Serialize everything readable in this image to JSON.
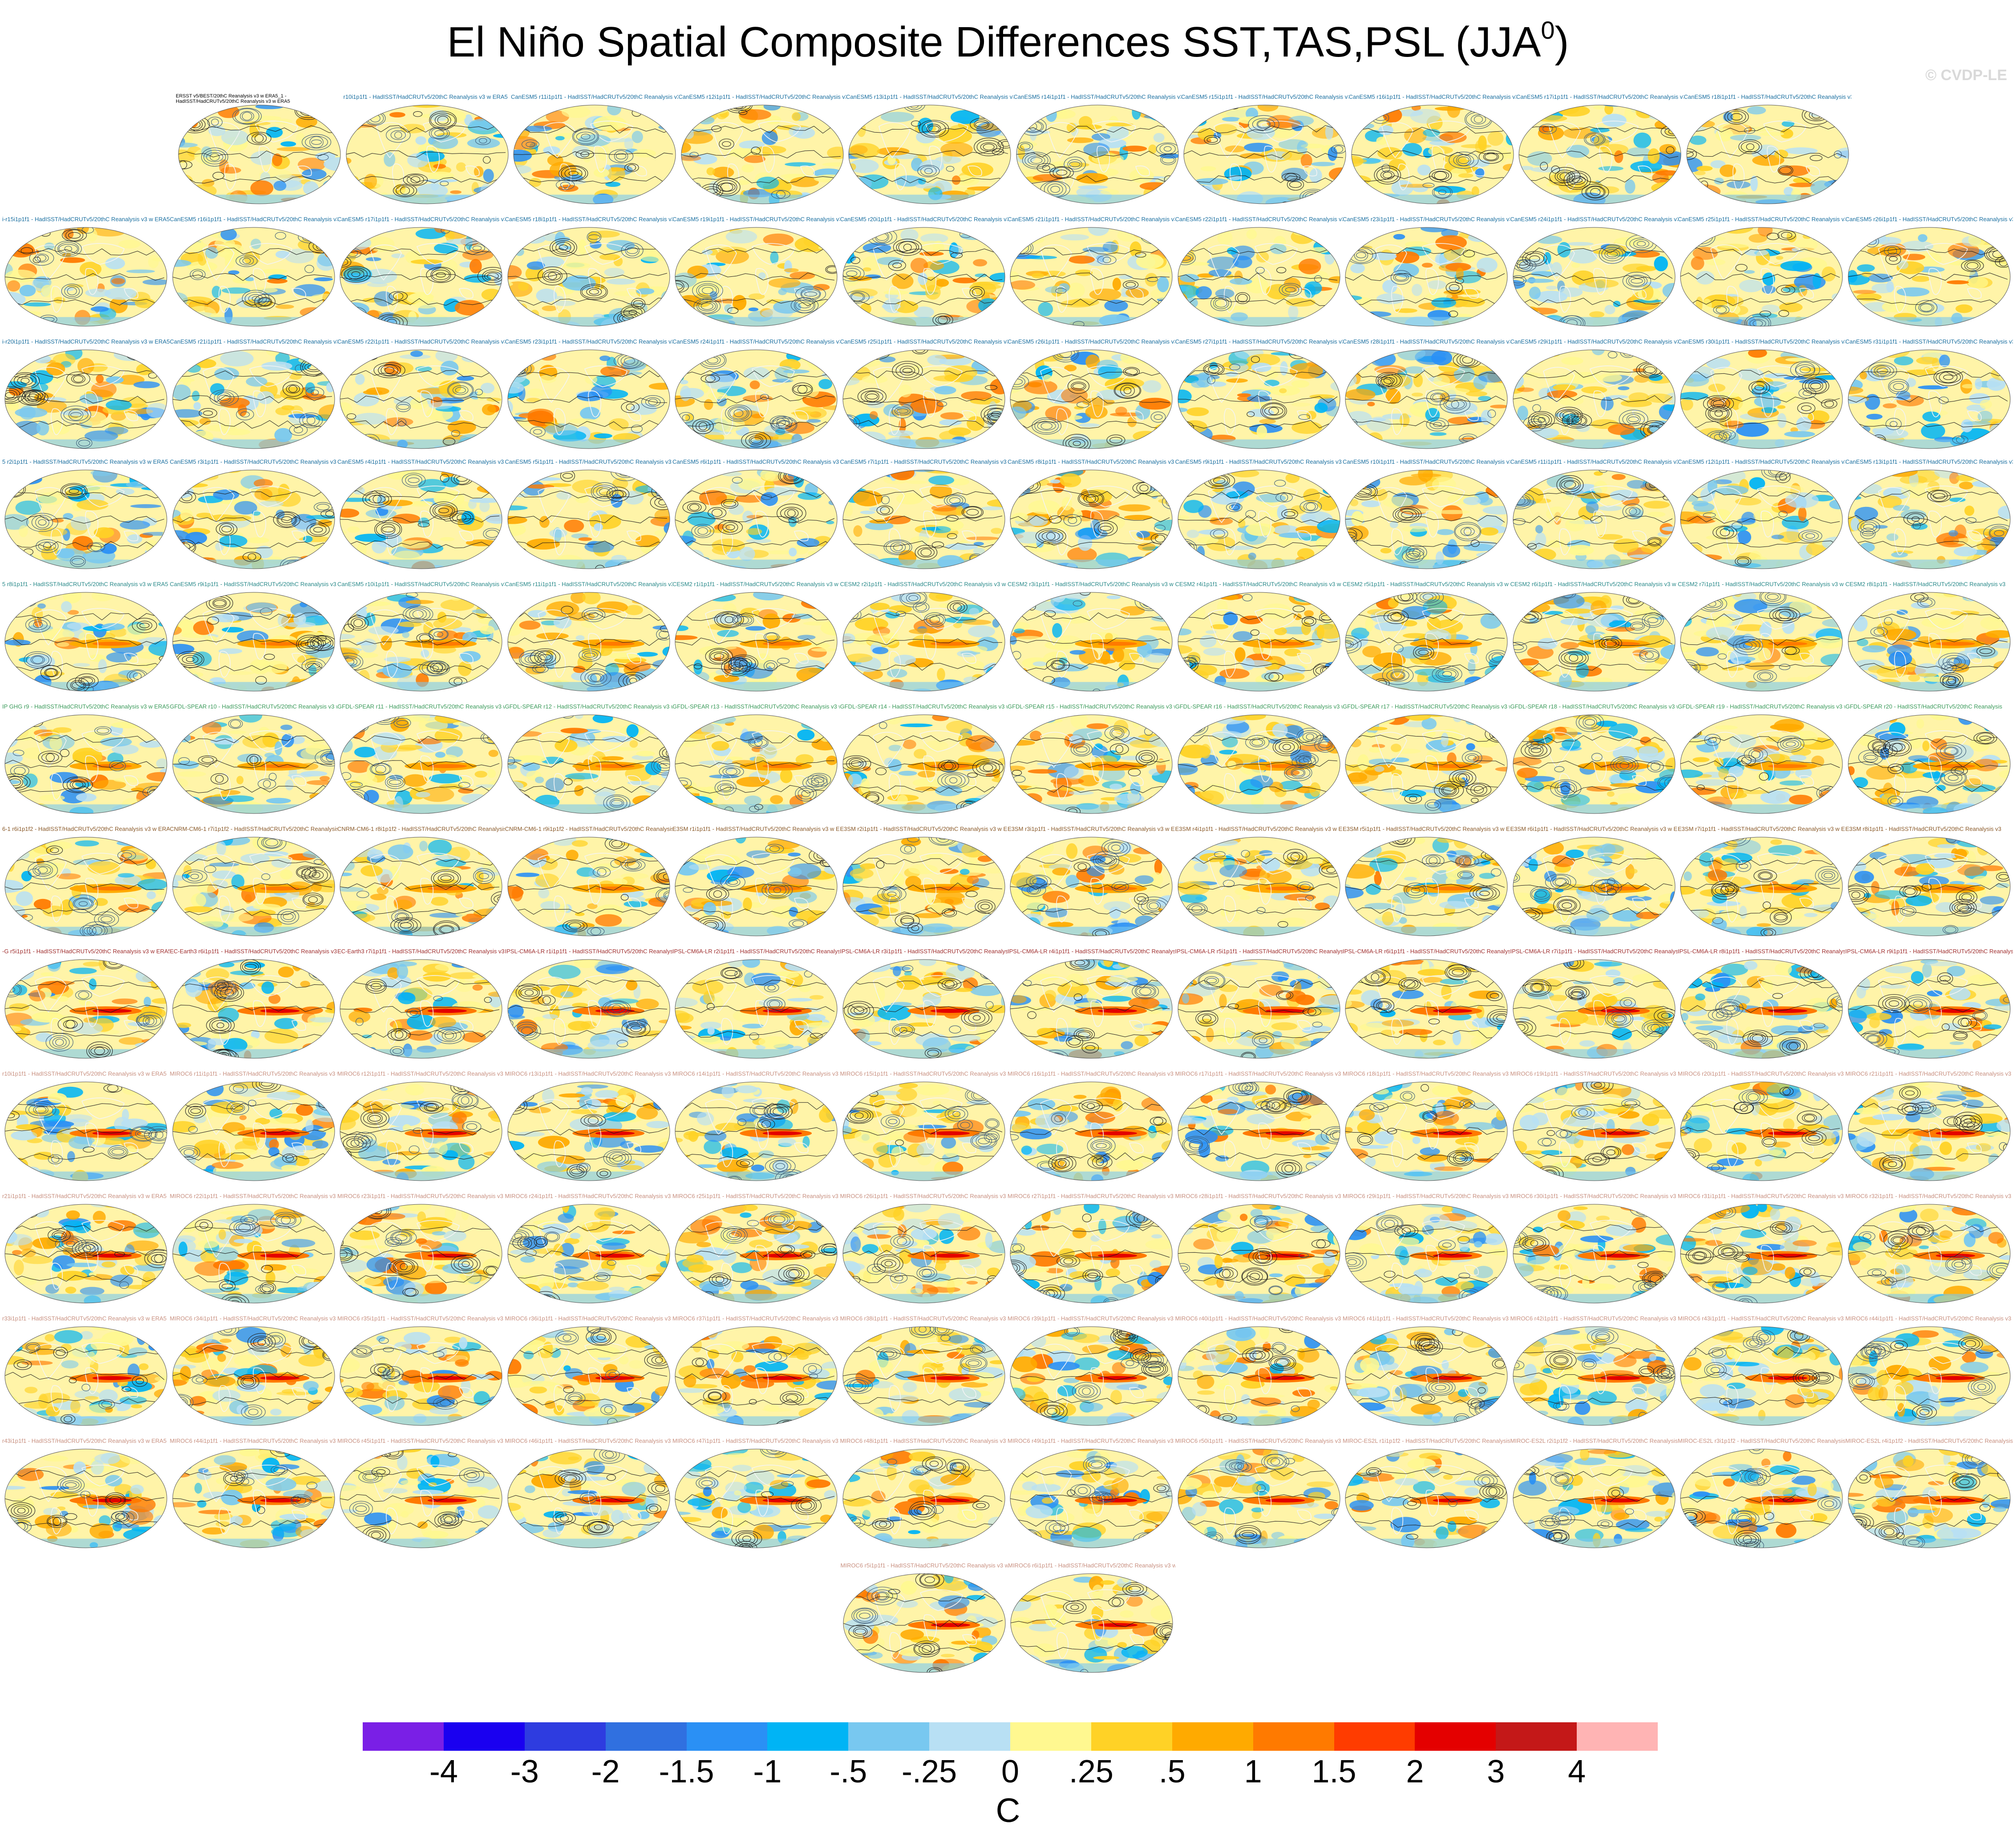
{
  "title": "El Niño Spatial Composite Differences SST,TAS,PSL (JJA",
  "title_sup": "0",
  "title_close": ")",
  "credit": "© CVDP-LE",
  "panel_rows": [
    {
      "panels": 10,
      "label_color": "#1a6fa0",
      "first_label": "ERSST v5/BEST/20thC Reanalysis v3 w ERA5_1 - HadISST/HadCRUTv5/20thC Reanalysis v3 w ERA5",
      "labels": [
        "r1i1p1f1 - HadISST/HadCRUTv5/20thC Reanalysis v3 w ERA5",
        "r10i1p1f1 - HadISST/HadCRUTv5/20thC Reanalysis v3 w ERA5",
        "CanESM5 r11i1p1f1 - HadISST/HadCRUTv5/20thC Reanalysis v3 w ERA5",
        "CanESM5 r12i1p1f1 - HadISST/HadCRUTv5/20thC Reanalysis v3 w ERA5",
        "CanESM5 r13i1p1f1 - HadISST/HadCRUTv5/20thC Reanalysis v3 w ERA5",
        "CanESM5 r14i1p1f1 - HadISST/HadCRUTv5/20thC Reanalysis v3 w ERA5",
        "CanESM5 r15i1p1f1 - HadISST/HadCRUTv5/20thC Reanalysis v3 w ERA5",
        "CanESM5 r16i1p1f1 - HadISST/HadCRUTv5/20thC Reanalysis v3 w ERA5",
        "CanESM5 r17i1p1f1 - HadISST/HadCRUTv5/20thC Reanalysis v3 w ERA5",
        "CanESM5 r18i1p1f1 - HadISST/HadCRUTv5/20thC Reanalysis v3"
      ]
    },
    {
      "panels": 12,
      "label_color": "#1a6fa0",
      "labels": [
        "i-r15i1p1f1 - HadISST/HadCRUTv5/20thC Reanalysis v3 w ERA5",
        "CanESM5 r16i1p1f1 - HadISST/HadCRUTv5/20thC Reanalysis v3 w ERA5",
        "CanESM5 r17i1p1f1 - HadISST/HadCRUTv5/20thC Reanalysis v3 w ERA5",
        "CanESM5 r18i1p1f1 - HadISST/HadCRUTv5/20thC Reanalysis v3 w ERA5",
        "CanESM5 r19i1p1f1 - HadISST/HadCRUTv5/20thC Reanalysis v3 w ERA5",
        "CanESM5 r20i1p1f1 - HadISST/HadCRUTv5/20thC Reanalysis v3 w ERA5",
        "CanESM5 r21i1p1f1 - HadISST/HadCRUTv5/20thC Reanalysis v3 w ERA5",
        "CanESM5 r22i1p1f1 - HadISST/HadCRUTv5/20thC Reanalysis v3 w ERA5",
        "CanESM5 r23i1p1f1 - HadISST/HadCRUTv5/20thC Reanalysis v3 w ERA5",
        "CanESM5 r24i1p1f1 - HadISST/HadCRUTv5/20thC Reanalysis v3 w ERA5",
        "CanESM5 r25i1p1f1 - HadISST/HadCRUTv5/20thC Reanalysis v3 w ERA5",
        "CanESM5 r26i1p1f1 - HadISST/HadCRUTv5/20thC Reanalysis v3"
      ]
    },
    {
      "panels": 12,
      "label_color": "#1a6fa0",
      "labels": [
        "i-r20i1p1f1 - HadISST/HadCRUTv5/20thC Reanalysis v3 w ERA5",
        "CanESM5 r21i1p1f1 - HadISST/HadCRUTv5/20thC Reanalysis v3 w ERA5",
        "CanESM5 r22i1p1f1 - HadISST/HadCRUTv5/20thC Reanalysis v3 w ERA5",
        "CanESM5 r23i1p1f1 - HadISST/HadCRUTv5/20thC Reanalysis v3 w ERA5",
        "CanESM5 r24i1p1f1 - HadISST/HadCRUTv5/20thC Reanalysis v3 w ERA5",
        "CanESM5 r25i1p1f1 - HadISST/HadCRUTv5/20thC Reanalysis v3 w ERA5",
        "CanESM5 r26i1p1f1 - HadISST/HadCRUTv5/20thC Reanalysis v3 w ERA5",
        "CanESM5 r27i1p1f1 - HadISST/HadCRUTv5/20thC Reanalysis v3 w ERA5",
        "CanESM5 r28i1p1f1 - HadISST/HadCRUTv5/20thC Reanalysis v3 w ERA5",
        "CanESM5 r29i1p1f1 - HadISST/HadCRUTv5/20thC Reanalysis v3 w ERA5",
        "CanESM5 r30i1p1f1 - HadISST/HadCRUTv5/20thC Reanalysis v3 w ERA5",
        "CanESM5 r31i1p1f1 - HadISST/HadCRUTv5/20thC Reanalysis v3"
      ]
    },
    {
      "panels": 12,
      "label_color": "#1a6fa0",
      "labels": [
        "5 r2i1p1f1 - HadISST/HadCRUTv5/20thC Reanalysis v3 w ERA5",
        "CanESM5 r3i1p1f1 - HadISST/HadCRUTv5/20thC Reanalysis v3 w ERA5",
        "CanESM5 r4i1p1f1 - HadISST/HadCRUTv5/20thC Reanalysis v3 w ERA5",
        "CanESM5 r5i1p1f1 - HadISST/HadCRUTv5/20thC Reanalysis v3 w ERA5",
        "CanESM5 r6i1p1f1 - HadISST/HadCRUTv5/20thC Reanalysis v3 w ERA5",
        "CanESM5 r7i1p1f1 - HadISST/HadCRUTv5/20thC Reanalysis v3 w ERA5",
        "CanESM5 r8i1p1f1 - HadISST/HadCRUTv5/20thC Reanalysis v3 w ERA5",
        "CanESM5 r9i1p1f1 - HadISST/HadCRUTv5/20thC Reanalysis v3 w ERA5",
        "CanESM5 r10i1p1f1 - HadISST/HadCRUTv5/20thC Reanalysis v3 w ERA5",
        "CanESM5 r11i1p1f1 - HadISST/HadCRUTv5/20thC Reanalysis v3 w ERA5",
        "CanESM5 r12i1p1f1 - HadISST/HadCRUTv5/20thC Reanalysis v3 w ERA5",
        "CanESM5 r13i1p1f1 - HadISST/HadCRUTv5/20thC Reanalysis v3"
      ]
    },
    {
      "panels": 12,
      "label_color": "#2a8a8a",
      "labels": [
        "5 r8i1p1f1 - HadISST/HadCRUTv5/20thC Reanalysis v3 w ERA5",
        "CanESM5 r9i1p1f1 - HadISST/HadCRUTv5/20thC Reanalysis v3 w ERA5",
        "CanESM5 r10i1p1f1 - HadISST/HadCRUTv5/20thC Reanalysis v3 w ERA5",
        "CanESM5 r11i1p1f1 - HadISST/HadCRUTv5/20thC Reanalysis v3 w ERA5",
        "CESM2 r1i1p1f1 - HadISST/HadCRUTv5/20thC Reanalysis v3 w ERA5",
        "CESM2 r2i1p1f1 - HadISST/HadCRUTv5/20thC Reanalysis v3 w ERA5",
        "CESM2 r3i1p1f1 - HadISST/HadCRUTv5/20thC Reanalysis v3 w ERA5",
        "CESM2 r4i1p1f1 - HadISST/HadCRUTv5/20thC Reanalysis v3 w ERA5",
        "CESM2 r5i1p1f1 - HadISST/HadCRUTv5/20thC Reanalysis v3 w ERA5",
        "CESM2 r6i1p1f1 - HadISST/HadCRUTv5/20thC Reanalysis v3 w ERA5",
        "CESM2 r7i1p1f1 - HadISST/HadCRUTv5/20thC Reanalysis v3 w ERA5",
        "CESM2 r8i1p1f1 - HadISST/HadCRUTv5/20thC Reanalysis v3"
      ]
    },
    {
      "panels": 12,
      "label_color": "#3a9a5a",
      "labels": [
        "IP GHG r9 - HadISST/HadCRUTv5/20thC Reanalysis v3 w ERA5",
        "GFDL-SPEAR r10 - HadISST/HadCRUTv5/20thC Reanalysis v3 w ERA5",
        "GFDL-SPEAR r11 - HadISST/HadCRUTv5/20thC Reanalysis v3 w ERA5",
        "GFDL-SPEAR r12 - HadISST/HadCRUTv5/20thC Reanalysis v3 w ERA5",
        "GFDL-SPEAR r13 - HadISST/HadCRUTv5/20thC Reanalysis v3 w ERA5",
        "GFDL-SPEAR r14 - HadISST/HadCRUTv5/20thC Reanalysis v3 w ERA5",
        "GFDL-SPEAR r15 - HadISST/HadCRUTv5/20thC Reanalysis v3 w ERA5",
        "GFDL-SPEAR r16 - HadISST/HadCRUTv5/20thC Reanalysis v3 w ERA5",
        "GFDL-SPEAR r17 - HadISST/HadCRUTv5/20thC Reanalysis v3 w ERA5",
        "GFDL-SPEAR r18 - HadISST/HadCRUTv5/20thC Reanalysis v3 w ERA5",
        "GFDL-SPEAR r19 - HadISST/HadCRUTv5/20thC Reanalysis v3 w ERA5",
        "GFDL-SPEAR r20 - HadISST/HadCRUTv5/20thC Reanalysis"
      ]
    },
    {
      "panels": 12,
      "label_color": "#8a5a2a",
      "labels": [
        "6-1 r6i1p1f2 - HadISST/HadCRUTv5/20thC Reanalysis v3 w ERA5",
        "CNRM-CM6-1 r7i1p1f2 - HadISST/HadCRUTv5/20thC Reanalysis v3 w ERA5",
        "CNRM-CM6-1 r8i1p1f2 - HadISST/HadCRUTv5/20thC Reanalysis v3 w ERA5",
        "CNRM-CM6-1 r9i1p1f2 - HadISST/HadCRUTv5/20thC Reanalysis v3 w ERA5",
        "E3SM r1i1p1f1 - HadISST/HadCRUTv5/20thC Reanalysis v3 w ERA5",
        "E3SM r2i1p1f1 - HadISST/HadCRUTv5/20thC Reanalysis v3 w ERA5",
        "E3SM r3i1p1f1 - HadISST/HadCRUTv5/20thC Reanalysis v3 w ERA5",
        "E3SM r4i1p1f1 - HadISST/HadCRUTv5/20thC Reanalysis v3 w ERA5",
        "E3SM r5i1p1f1 - HadISST/HadCRUTv5/20thC Reanalysis v3 w ERA5",
        "E3SM r6i1p1f1 - HadISST/HadCRUTv5/20thC Reanalysis v3 w ERA5",
        "E3SM r7i1p1f1 - HadISST/HadCRUTv5/20thC Reanalysis v3 w ERA5",
        "E3SM r8i1p1f1 - HadISST/HadCRUTv5/20thC Reanalysis v3"
      ]
    },
    {
      "panels": 12,
      "label_color": "#a03030",
      "labels": [
        "-G r5i1p1f1 - HadISST/HadCRUTv5/20thC Reanalysis v3 w ERA5",
        "EC-Earth3 r6i1p1f1 - HadISST/HadCRUTv5/20thC Reanalysis v3 w ERA5",
        "EC-Earth3 r7i1p1f1 - HadISST/HadCRUTv5/20thC Reanalysis v3 w ERA5",
        "IPSL-CM6A-LR r1i1p1f1 - HadISST/HadCRUTv5/20thC Reanalysis v3 w ERA5",
        "IPSL-CM6A-LR r2i1p1f1 - HadISST/HadCRUTv5/20thC Reanalysis v3 w ERA5",
        "IPSL-CM6A-LR r3i1p1f1 - HadISST/HadCRUTv5/20thC Reanalysis v3 w ERA5",
        "IPSL-CM6A-LR r4i1p1f1 - HadISST/HadCRUTv5/20thC Reanalysis v3 w ERA5",
        "IPSL-CM6A-LR r5i1p1f1 - HadISST/HadCRUTv5/20thC Reanalysis v3 w ERA5",
        "IPSL-CM6A-LR r6i1p1f1 - HadISST/HadCRUTv5/20thC Reanalysis v3 w ERA5",
        "IPSL-CM6A-LR r7i1p1f1 - HadISST/HadCRUTv5/20thC Reanalysis v3 w ERA5",
        "IPSL-CM6A-LR r8i1p1f1 - HadISST/HadCRUTv5/20thC Reanalysis v3 w ERA5",
        "IPSL-CM6A-LR r9i1p1f1 - HadISST/HadCRUTv5/20thC Reanalysis"
      ]
    },
    {
      "panels": 12,
      "label_color": "#c89080",
      "labels": [
        "r10i1p1f1 - HadISST/HadCRUTv5/20thC Reanalysis v3 w ERA5",
        "MIROC6 r11i1p1f1 - HadISST/HadCRUTv5/20thC Reanalysis v3 w ERA5",
        "MIROC6 r12i1p1f1 - HadISST/HadCRUTv5/20thC Reanalysis v3 w ERA5",
        "MIROC6 r13i1p1f1 - HadISST/HadCRUTv5/20thC Reanalysis v3 w ERA5",
        "MIROC6 r14i1p1f1 - HadISST/HadCRUTv5/20thC Reanalysis v3 w ERA5",
        "MIROC6 r15i1p1f1 - HadISST/HadCRUTv5/20thC Reanalysis v3 w ERA5",
        "MIROC6 r16i1p1f1 - HadISST/HadCRUTv5/20thC Reanalysis v3 w ERA5",
        "MIROC6 r17i1p1f1 - HadISST/HadCRUTv5/20thC Reanalysis v3 w ERA5",
        "MIROC6 r18i1p1f1 - HadISST/HadCRUTv5/20thC Reanalysis v3 w ERA5",
        "MIROC6 r19i1p1f1 - HadISST/HadCRUTv5/20thC Reanalysis v3 w ERA5",
        "MIROC6 r20i1p1f1 - HadISST/HadCRUTv5/20thC Reanalysis v3 w ERA5",
        "MIROC6 r21i1p1f1 - HadISST/HadCRUTv5/20thC Reanalysis v3"
      ]
    },
    {
      "panels": 12,
      "label_color": "#c89080",
      "labels": [
        "r21i1p1f1 - HadISST/HadCRUTv5/20thC Reanalysis v3 w ERA5",
        "MIROC6 r22i1p1f1 - HadISST/HadCRUTv5/20thC Reanalysis v3 w ERA5",
        "MIROC6 r23i1p1f1 - HadISST/HadCRUTv5/20thC Reanalysis v3 w ERA5",
        "MIROC6 r24i1p1f1 - HadISST/HadCRUTv5/20thC Reanalysis v3 w ERA5",
        "MIROC6 r25i1p1f1 - HadISST/HadCRUTv5/20thC Reanalysis v3 w ERA5",
        "MIROC6 r26i1p1f1 - HadISST/HadCRUTv5/20thC Reanalysis v3 w ERA5",
        "MIROC6 r27i1p1f1 - HadISST/HadCRUTv5/20thC Reanalysis v3 w ERA5",
        "MIROC6 r28i1p1f1 - HadISST/HadCRUTv5/20thC Reanalysis v3 w ERA5",
        "MIROC6 r29i1p1f1 - HadISST/HadCRUTv5/20thC Reanalysis v3 w ERA5",
        "MIROC6 r30i1p1f1 - HadISST/HadCRUTv5/20thC Reanalysis v3 w ERA5",
        "MIROC6 r31i1p1f1 - HadISST/HadCRUTv5/20thC Reanalysis v3 w ERA5",
        "MIROC6 r32i1p1f1 - HadISST/HadCRUTv5/20thC Reanalysis v3"
      ]
    },
    {
      "panels": 12,
      "label_color": "#c89080",
      "labels": [
        "r33i1p1f1 - HadISST/HadCRUTv5/20thC Reanalysis v3 w ERA5",
        "MIROC6 r34i1p1f1 - HadISST/HadCRUTv5/20thC Reanalysis v3 w ERA5",
        "MIROC6 r35i1p1f1 - HadISST/HadCRUTv5/20thC Reanalysis v3 w ERA5",
        "MIROC6 r36i1p1f1 - HadISST/HadCRUTv5/20thC Reanalysis v3 w ERA5",
        "MIROC6 r37i1p1f1 - HadISST/HadCRUTv5/20thC Reanalysis v3 w ERA5",
        "MIROC6 r38i1p1f1 - HadISST/HadCRUTv5/20thC Reanalysis v3 w ERA5",
        "MIROC6 r39i1p1f1 - HadISST/HadCRUTv5/20thC Reanalysis v3 w ERA5",
        "MIROC6 r40i1p1f1 - HadISST/HadCRUTv5/20thC Reanalysis v3 w ERA5",
        "MIROC6 r41i1p1f1 - HadISST/HadCRUTv5/20thC Reanalysis v3 w ERA5",
        "MIROC6 r42i1p1f1 - HadISST/HadCRUTv5/20thC Reanalysis v3 w ERA5",
        "MIROC6 r43i1p1f1 - HadISST/HadCRUTv5/20thC Reanalysis v3 w ERA5",
        "MIROC6 r44i1p1f1 - HadISST/HadCRUTv5/20thC Reanalysis v3"
      ]
    },
    {
      "panels": 12,
      "label_color": "#c89080",
      "labels": [
        "r43i1p1f1 - HadISST/HadCRUTv5/20thC Reanalysis v3 w ERA5",
        "MIROC6 r44i1p1f1 - HadISST/HadCRUTv5/20thC Reanalysis v3 w ERA5",
        "MIROC6 r45i1p1f1 - HadISST/HadCRUTv5/20thC Reanalysis v3 w ERA5",
        "MIROC6 r46i1p1f1 - HadISST/HadCRUTv5/20thC Reanalysis v3 w ERA5",
        "MIROC6 r47i1p1f1 - HadISST/HadCRUTv5/20thC Reanalysis v3 w ERA5",
        "MIROC6 r48i1p1f1 - HadISST/HadCRUTv5/20thC Reanalysis v3 w ERA5",
        "MIROC6 r49i1p1f1 - HadISST/HadCRUTv5/20thC Reanalysis v3 w ERA5",
        "MIROC6 r50i1p1f1 - HadISST/HadCRUTv5/20thC Reanalysis v3 w ERA5",
        "MIROC-ES2L r1i1p1f2 - HadISST/HadCRUTv5/20thC Reanalysis v3 w ERA5",
        "MIROC-ES2L r2i1p1f2 - HadISST/HadCRUTv5/20thC Reanalysis v3 w ERA5",
        "MIROC-ES2L r3i1p1f2 - HadISST/HadCRUTv5/20thC Reanalysis v3 w ERA5",
        "MIROC-ES2L r4i1p1f2 - HadISST/HadCRUTv5/20thC Reanalysis v3"
      ]
    },
    {
      "panels": 2,
      "label_color": "#c89080",
      "labels": [
        "MIROC6 r5i1p1f1 - HadISST/HadCRUTv5/20thC Reanalysis v3 w ERA5",
        "MIROC6 r6i1p1f1 - HadISST/HadCRUTv5/20thC Reanalysis v3 w ERA5"
      ]
    }
  ],
  "colorbar": {
    "colors": [
      "#7a1fe6",
      "#1a00f0",
      "#2e3ce0",
      "#3070e0",
      "#2a90f5",
      "#00b4f5",
      "#78c8f0",
      "#b8e0f4",
      "#fff890",
      "#ffd226",
      "#ffaa00",
      "#ff7a00",
      "#ff3c00",
      "#e40000",
      "#c41818",
      "#ffb4b4"
    ],
    "labels": [
      "-4",
      "-3",
      "-2",
      "-1.5",
      "-1",
      "-.5",
      "-.25",
      "0",
      ".25",
      ".5",
      "1",
      "1.5",
      "2",
      "3",
      "4"
    ],
    "units": "C"
  }
}
